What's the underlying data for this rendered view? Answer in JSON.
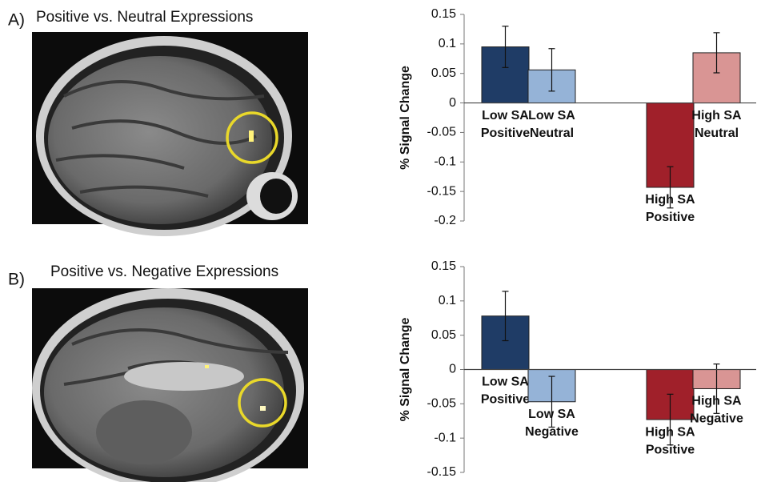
{
  "chart_data": [
    {
      "type": "bar",
      "panel": "A)",
      "title": "Positive vs. Neutral Expressions",
      "ylabel": "% Signal Change",
      "categories": [
        [
          "Low SA",
          "Positive"
        ],
        [
          "Low SA",
          "Neutral"
        ],
        [
          "High SA",
          "Positive"
        ],
        [
          "High SA",
          "Neutral"
        ]
      ],
      "values": [
        0.095,
        0.056,
        -0.143,
        0.085
      ],
      "errors": [
        0.035,
        0.036,
        0.035,
        0.034
      ],
      "colors": [
        "#1f3c66",
        "#95b3d7",
        "#a0202a",
        "#d99594"
      ],
      "ylim": [
        -0.2,
        0.15
      ],
      "yticks": [
        0.15,
        0.1,
        0.05,
        0,
        -0.05,
        -0.1,
        -0.15,
        -0.2
      ]
    },
    {
      "type": "bar",
      "panel": "B)",
      "title": "Positive vs. Negative Expressions",
      "ylabel": "% Signal Change",
      "categories": [
        [
          "Low SA",
          "Positive"
        ],
        [
          "Low SA",
          "Negative"
        ],
        [
          "High SA",
          "Positive"
        ],
        [
          "High SA",
          "Negative"
        ]
      ],
      "values": [
        0.078,
        -0.047,
        -0.073,
        -0.028
      ],
      "errors": [
        0.036,
        0.037,
        0.037,
        0.036
      ],
      "colors": [
        "#1f3c66",
        "#95b3d7",
        "#a0202a",
        "#d99594"
      ],
      "ylim": [
        -0.15,
        0.15
      ],
      "yticks": [
        0.15,
        0.1,
        0.05,
        0,
        -0.05,
        -0.1,
        -0.15
      ]
    }
  ]
}
